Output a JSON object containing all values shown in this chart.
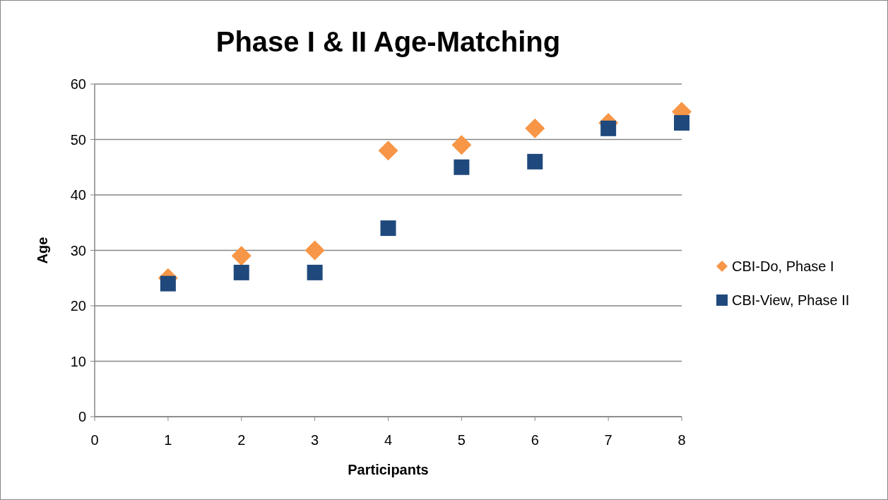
{
  "chart_data": {
    "type": "scatter",
    "title": "Phase I & II Age-Matching",
    "xlabel": "Participants",
    "ylabel": "Age",
    "x": [
      1,
      2,
      3,
      4,
      5,
      6,
      7,
      8
    ],
    "series": [
      {
        "name": "CBI-Do, Phase I",
        "color": "#f79646",
        "marker": "diamond",
        "values": [
          25,
          29,
          30,
          48,
          49,
          52,
          53,
          55
        ]
      },
      {
        "name": "CBI-View, Phase II",
        "color": "#1f497d",
        "marker": "square",
        "values": [
          24,
          26,
          26,
          34,
          45,
          46,
          52,
          53
        ]
      }
    ],
    "xlim": [
      0,
      8
    ],
    "xticks": [
      0,
      1,
      2,
      3,
      4,
      5,
      6,
      7,
      8
    ],
    "ylim": [
      0,
      60
    ],
    "yticks": [
      0,
      10,
      20,
      30,
      40,
      50,
      60
    ],
    "grid": "y",
    "legend": "right"
  }
}
